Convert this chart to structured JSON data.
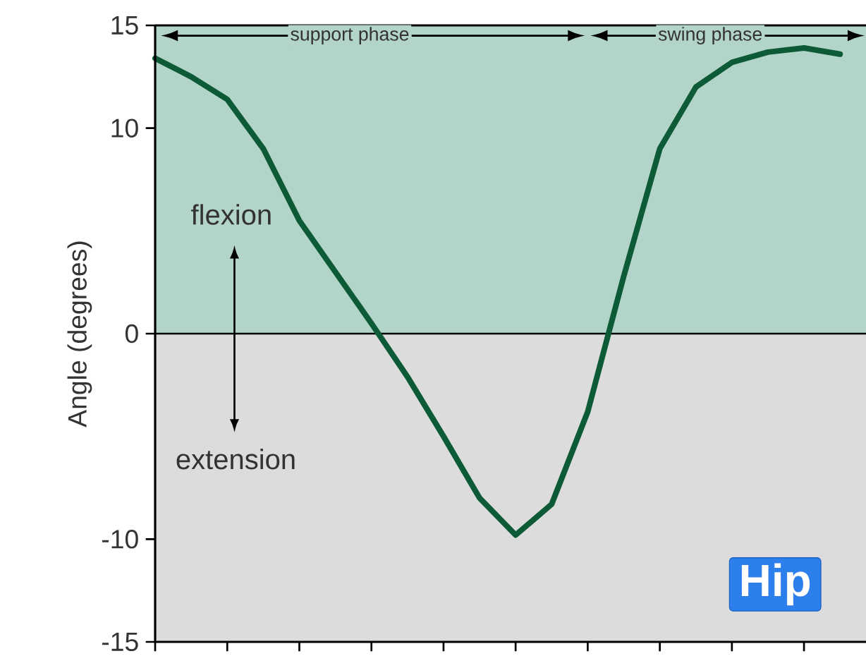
{
  "chart_data": {
    "type": "line",
    "ylabel": "Angle (degrees)",
    "categories": [
      null,
      null,
      null,
      null,
      null,
      null,
      null,
      null,
      null,
      null,
      null,
      null,
      null,
      null,
      null,
      null,
      null,
      null,
      null,
      null
    ],
    "series": [
      {
        "color": "#0d5a36",
        "values": [
          13.4,
          12.5,
          11.4,
          9.0,
          5.5,
          3.0,
          0.5,
          -2.1,
          -5.0,
          -8.0,
          -9.8,
          -8.3,
          -3.8,
          2.8,
          9.0,
          12.0,
          13.2,
          13.7,
          13.9,
          13.6
        ]
      }
    ],
    "ylim": [
      -15,
      15
    ],
    "yticks": [
      -15,
      -10,
      0,
      10,
      15
    ],
    "tick_labels": "y",
    "bands": [
      {
        "axis": "y",
        "from": 0,
        "to": 15,
        "color": "#b3d4c9"
      },
      {
        "axis": "y",
        "from": -15,
        "to": 0,
        "color": "#dcdcdc"
      }
    ],
    "ref_lines": [
      {
        "axis": "y",
        "value": 0
      }
    ],
    "annotations": [
      "support phase",
      "swing phase",
      "flexion",
      "extension",
      "Hip"
    ]
  }
}
